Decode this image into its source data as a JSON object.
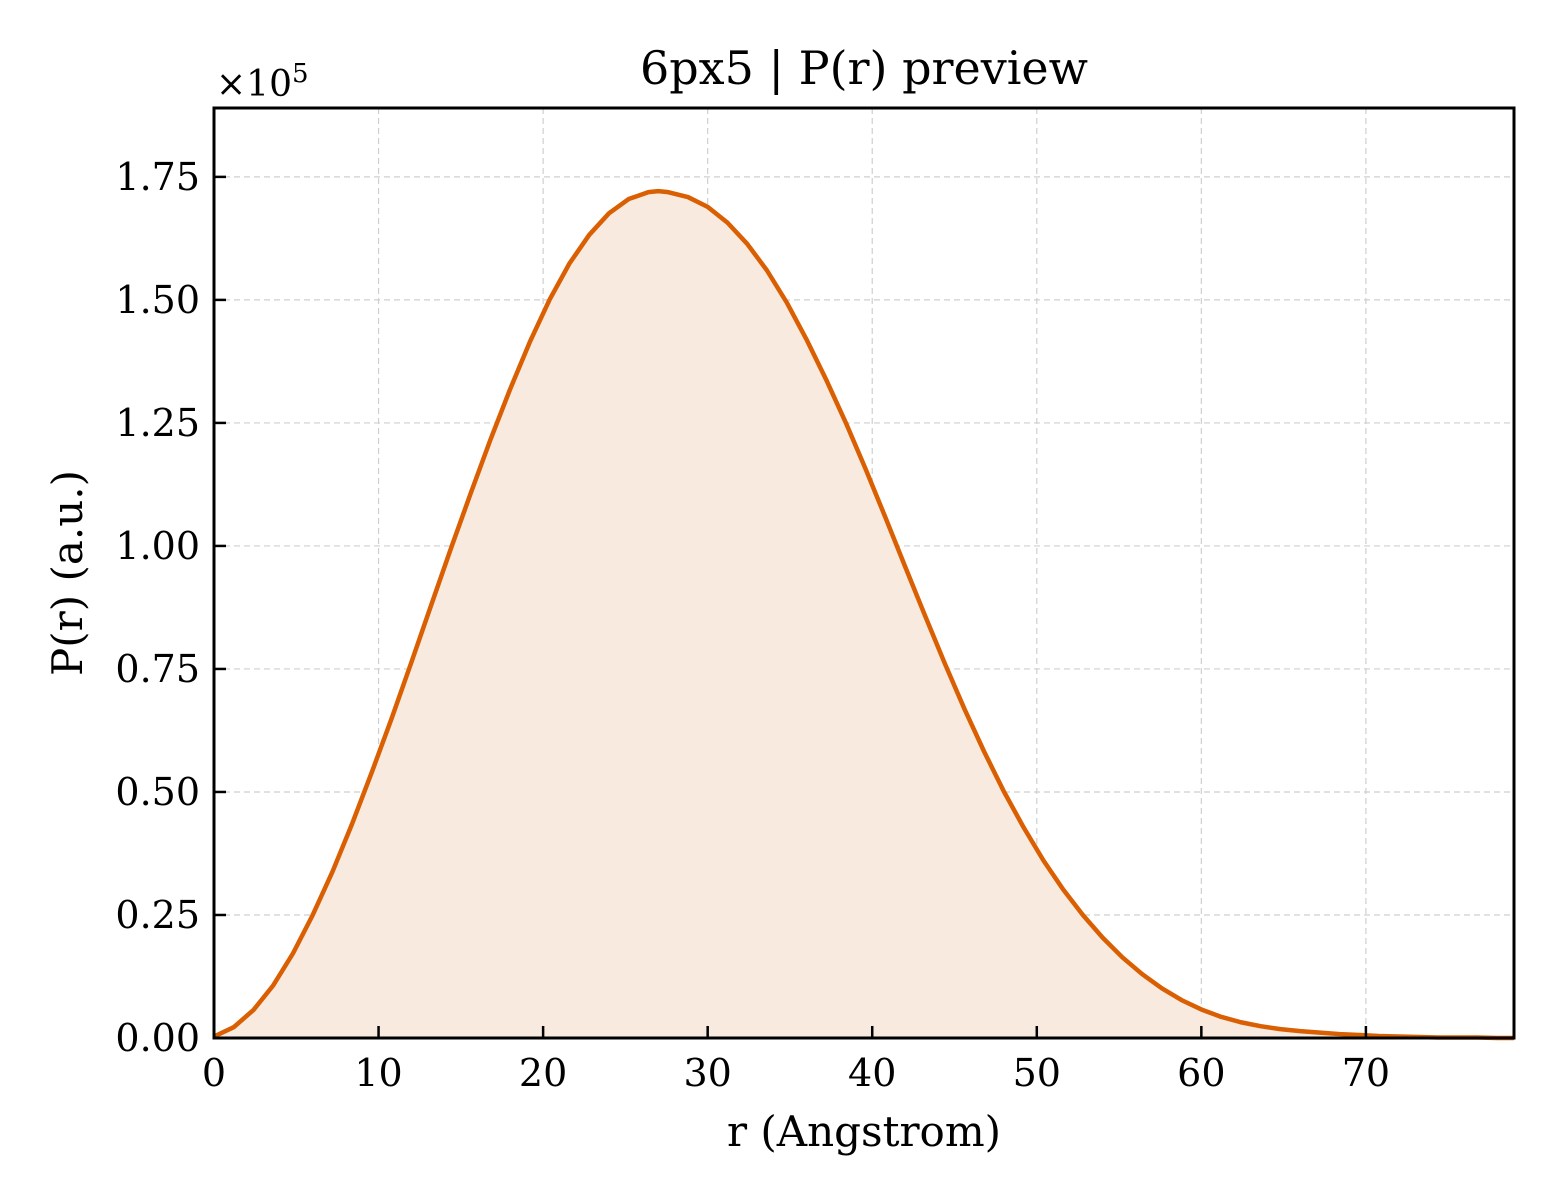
{
  "chart_data": {
    "type": "area",
    "title": "6px5 | P(r) preview",
    "xlabel": "r (Angstrom)",
    "ylabel": "P(r) (a.u.)",
    "y_offset_label": {
      "prefix": "×10",
      "exponent": "5"
    },
    "xlim": [
      0,
      79
    ],
    "ylim": [
      0,
      1.89
    ],
    "xticks": [
      0,
      10,
      20,
      30,
      40,
      50,
      60,
      70
    ],
    "xtick_labels": [
      "0",
      "10",
      "20",
      "30",
      "40",
      "50",
      "60",
      "70"
    ],
    "yticks": [
      0,
      0.25,
      0.5,
      0.75,
      1.0,
      1.25,
      1.5,
      1.75
    ],
    "ytick_labels": [
      "0.00",
      "0.25",
      "0.50",
      "0.75",
      "1.00",
      "1.25",
      "1.50",
      "1.75"
    ],
    "grid": true,
    "line_color": "#d95f02",
    "fill_color": "#f9eadf",
    "series": [
      {
        "x": [
          0,
          1.2,
          2.4,
          3.6,
          4.8,
          6.0,
          7.2,
          8.4,
          9.6,
          10.8,
          12.0,
          13.2,
          14.4,
          15.6,
          16.8,
          18.0,
          19.2,
          20.4,
          21.6,
          22.8,
          24.0,
          25.2,
          26.4,
          27.0,
          27.6,
          28.8,
          30.0,
          31.2,
          32.4,
          33.6,
          34.8,
          36.0,
          37.2,
          38.4,
          39.6,
          40.8,
          42.0,
          43.2,
          44.4,
          45.6,
          46.8,
          48.0,
          49.2,
          50.4,
          51.6,
          52.8,
          54.0,
          55.2,
          56.4,
          57.6,
          58.8,
          60.0,
          61.2,
          62.4,
          63.6,
          64.8,
          66.0,
          67.2,
          68.4,
          69.6,
          70.8,
          72.0,
          73.2,
          74.4,
          75.6,
          76.8,
          78.0,
          79.0
        ],
        "y": [
          0.003,
          0.022,
          0.057,
          0.107,
          0.172,
          0.25,
          0.338,
          0.436,
          0.541,
          0.65,
          0.764,
          0.88,
          0.995,
          1.107,
          1.216,
          1.319,
          1.415,
          1.501,
          1.574,
          1.632,
          1.676,
          1.705,
          1.719,
          1.721,
          1.719,
          1.709,
          1.689,
          1.657,
          1.614,
          1.56,
          1.495,
          1.42,
          1.338,
          1.25,
          1.156,
          1.058,
          0.958,
          0.859,
          0.762,
          0.669,
          0.582,
          0.501,
          0.428,
          0.361,
          0.302,
          0.25,
          0.204,
          0.164,
          0.13,
          0.101,
          0.077,
          0.058,
          0.043,
          0.032,
          0.024,
          0.018,
          0.014,
          0.011,
          0.008,
          0.006,
          0.004,
          0.003,
          0.002,
          0.001,
          0.001,
          0.001,
          0.0,
          0.0
        ]
      }
    ]
  }
}
